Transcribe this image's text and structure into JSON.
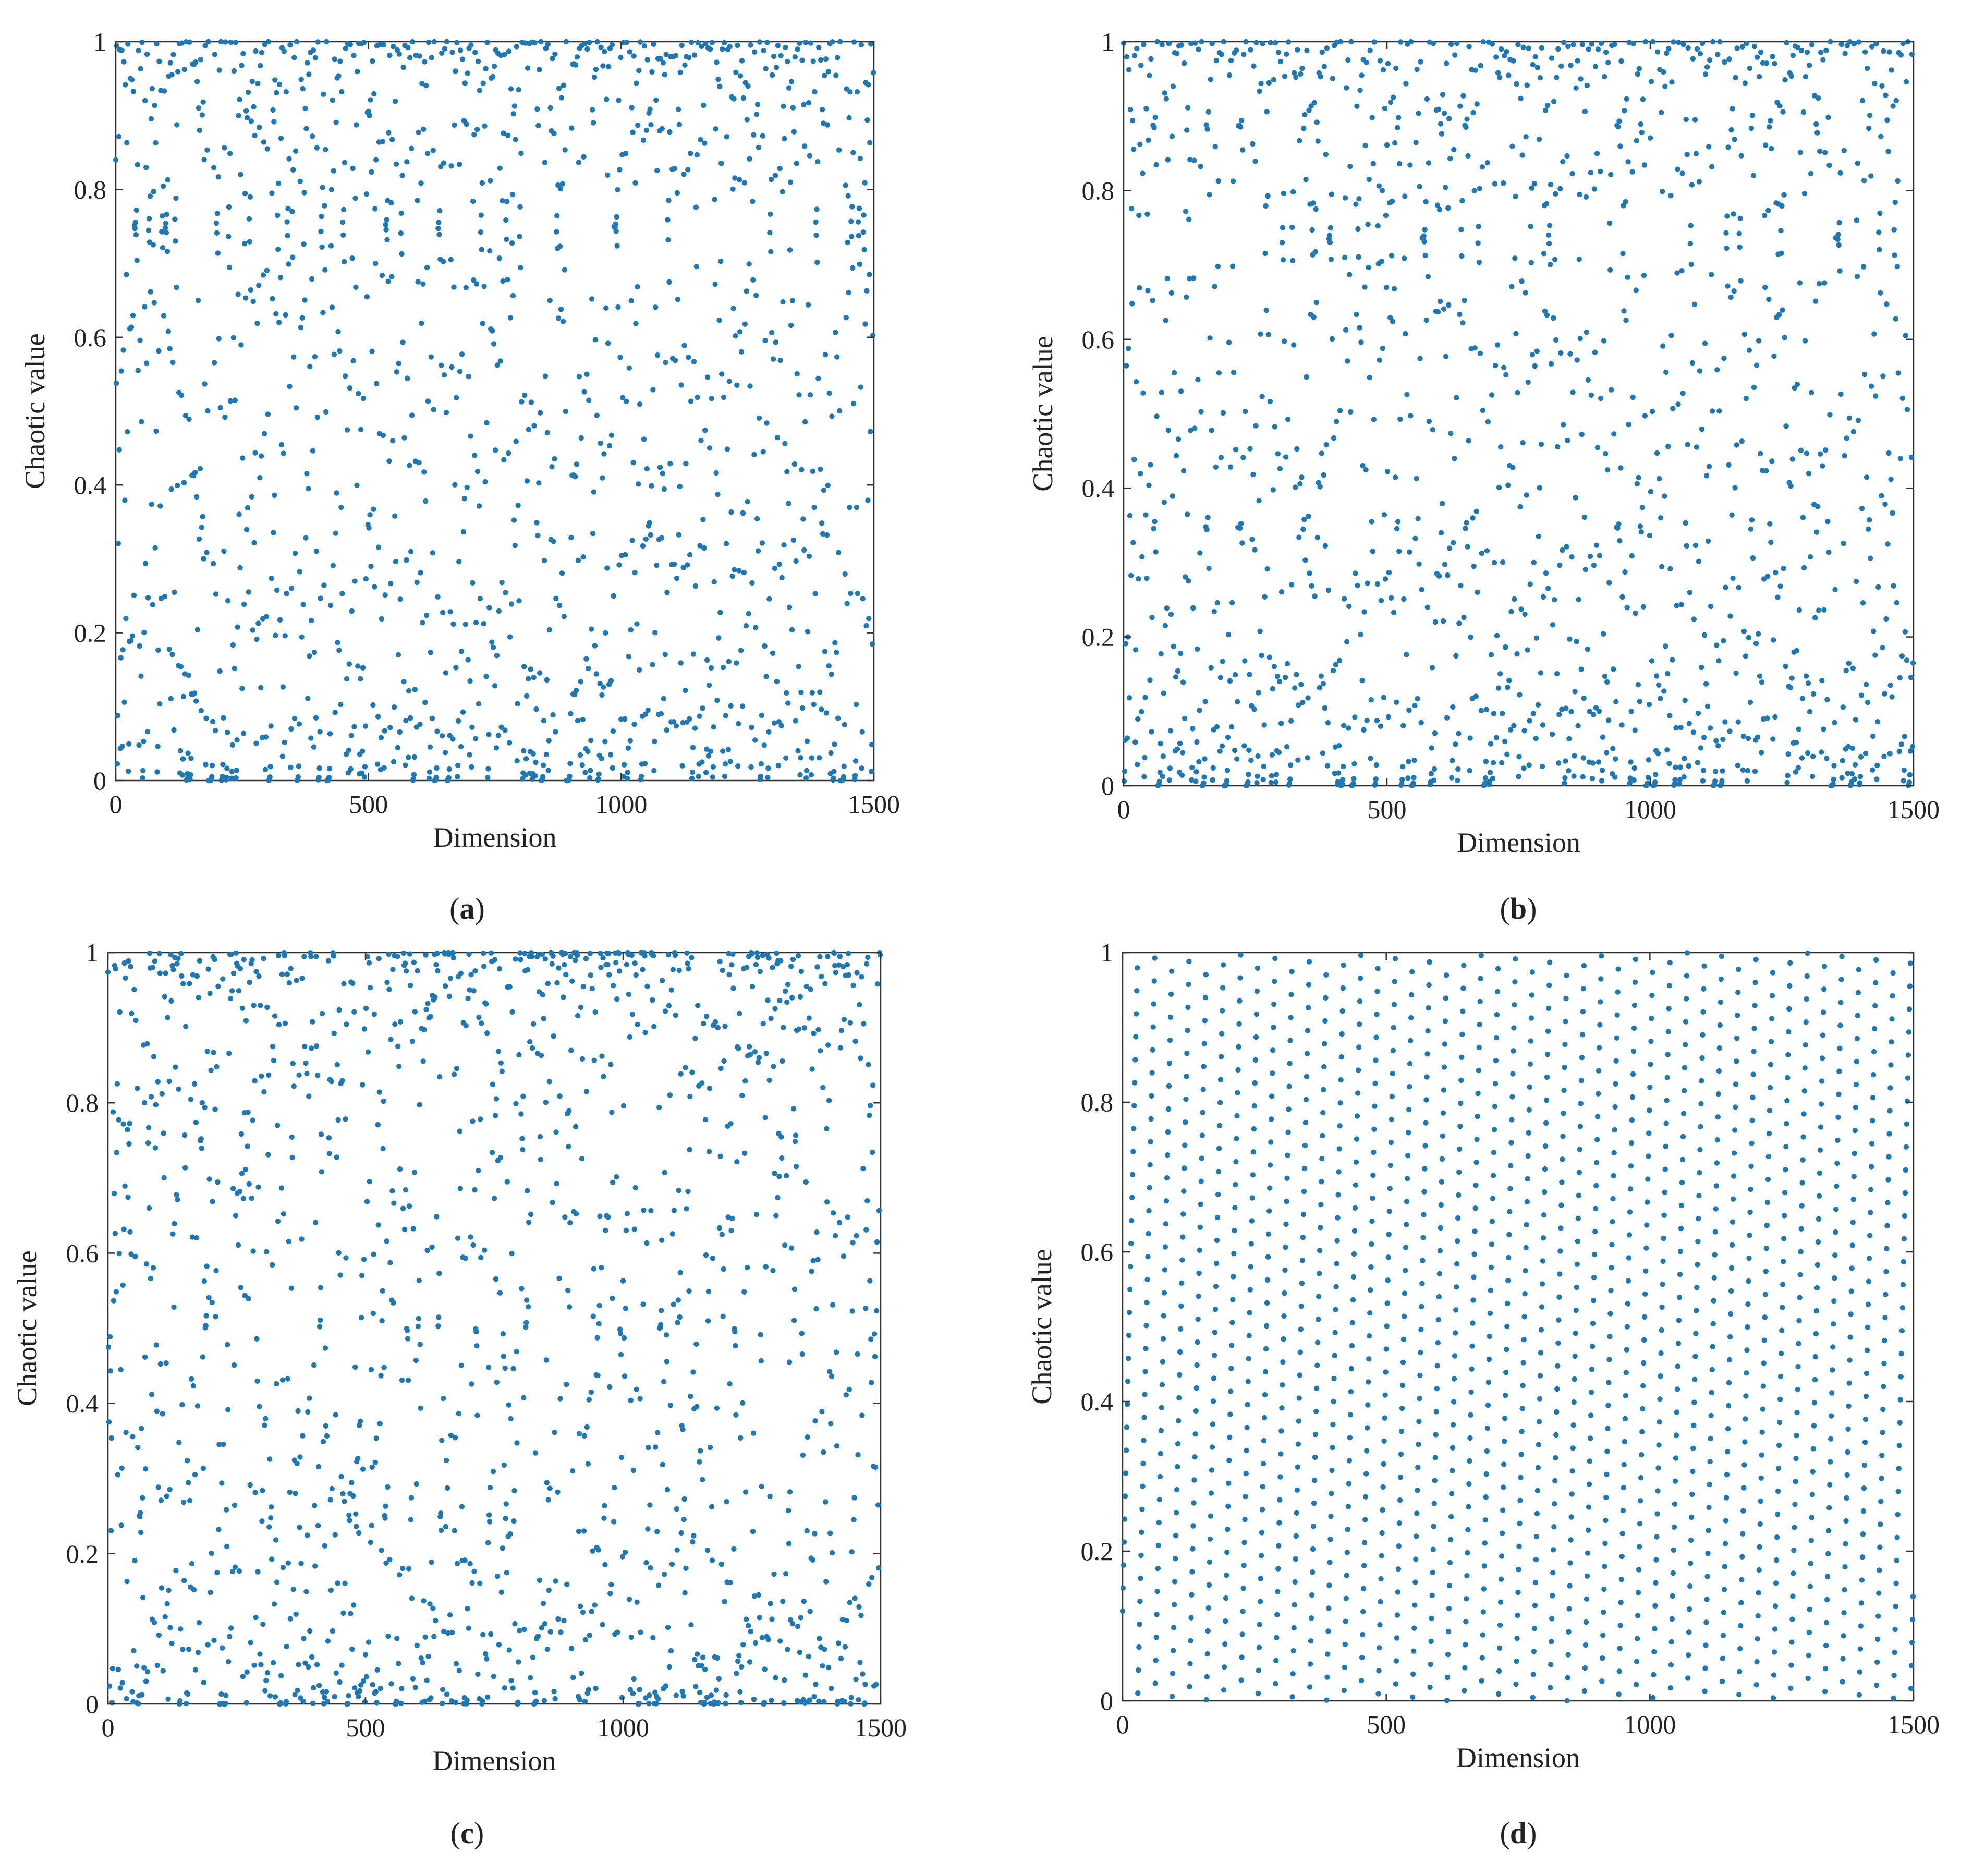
{
  "figure": {
    "panels": [
      {
        "id": "a",
        "caption_open": "(",
        "caption_letter": "a",
        "caption_close": ")",
        "pattern": "logistic"
      },
      {
        "id": "b",
        "caption_open": "(",
        "caption_letter": "b",
        "caption_close": ")",
        "pattern": "sine"
      },
      {
        "id": "c",
        "caption_open": "(",
        "caption_letter": "c",
        "caption_close": ")",
        "pattern": "chebyshev"
      },
      {
        "id": "d",
        "caption_open": "(",
        "caption_letter": "d",
        "caption_close": ")",
        "pattern": "lattice"
      }
    ]
  },
  "colors": {
    "points": "#1f77b4",
    "axes": "#333333"
  },
  "chart_data": [
    {
      "type": "scatter",
      "title": "",
      "xlabel": "Dimension",
      "ylabel": "Chaotic value",
      "xlim": [
        0,
        1500
      ],
      "ylim": [
        0,
        1
      ],
      "xticks": [
        0,
        500,
        1000,
        1500
      ],
      "yticks": [
        0,
        0.2,
        0.4,
        0.6,
        0.8,
        1
      ],
      "xtick_labels": [
        "0",
        "500",
        "1000",
        "1500"
      ],
      "ytick_labels": [
        "0",
        "0.2",
        "0.4",
        "0.6",
        "0.8",
        "1"
      ],
      "grid": false,
      "legend": "none",
      "point_count": 1500,
      "x_step": 1
    },
    {
      "type": "scatter",
      "title": "",
      "xlabel": "Dimension",
      "ylabel": "Chaotic value",
      "xlim": [
        0,
        1500
      ],
      "ylim": [
        0,
        1
      ],
      "xticks": [
        0,
        500,
        1000,
        1500
      ],
      "yticks": [
        0,
        0.2,
        0.4,
        0.6,
        0.8,
        1
      ],
      "xtick_labels": [
        "0",
        "500",
        "1000",
        "1500"
      ],
      "ytick_labels": [
        "0",
        "0.2",
        "0.4",
        "0.6",
        "0.8",
        "1"
      ],
      "grid": false,
      "legend": "none",
      "point_count": 1500,
      "x_step": 1
    },
    {
      "type": "scatter",
      "title": "",
      "xlabel": "Dimension",
      "ylabel": "Chaotic value",
      "xlim": [
        0,
        1500
      ],
      "ylim": [
        0,
        1
      ],
      "xticks": [
        0,
        500,
        1000,
        1500
      ],
      "yticks": [
        0,
        0.2,
        0.4,
        0.6,
        0.8,
        1
      ],
      "xtick_labels": [
        "0",
        "500",
        "1000",
        "1500"
      ],
      "ytick_labels": [
        "0",
        "0.2",
        "0.4",
        "0.6",
        "0.8",
        "1"
      ],
      "grid": false,
      "legend": "none",
      "point_count": 1500,
      "x_step": 1
    },
    {
      "type": "scatter",
      "title": "",
      "xlabel": "Dimension",
      "ylabel": "Chaotic value",
      "xlim": [
        0,
        1500
      ],
      "ylim": [
        0,
        1
      ],
      "xticks": [
        0,
        500,
        1000,
        1500
      ],
      "yticks": [
        0,
        0.2,
        0.4,
        0.6,
        0.8,
        1
      ],
      "xtick_labels": [
        "0",
        "500",
        "1000",
        "1500"
      ],
      "ytick_labels": [
        "0",
        "0.2",
        "0.4",
        "0.6",
        "0.8",
        "1"
      ],
      "grid": false,
      "legend": "none",
      "point_count": 1500,
      "x_step": 1
    }
  ]
}
